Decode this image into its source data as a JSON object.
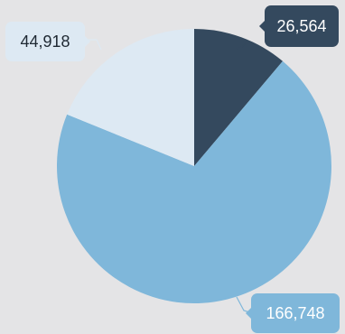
{
  "chart_data": {
    "type": "pie",
    "start_angle_deg": 0,
    "direction": "clockwise",
    "slices": [
      {
        "value": 26564,
        "label": "26,564",
        "color": "#34495e",
        "label_bg": "#34495e",
        "label_color": "#ffffff"
      },
      {
        "value": 166748,
        "label": "166,748",
        "color": "#7fb7da",
        "label_bg": "#7fb7da",
        "label_color": "#ffffff"
      },
      {
        "value": 44918,
        "label": "44,918",
        "color": "#dde9f3",
        "label_bg": "#dde9f3",
        "label_color": "#1f2933"
      }
    ]
  }
}
